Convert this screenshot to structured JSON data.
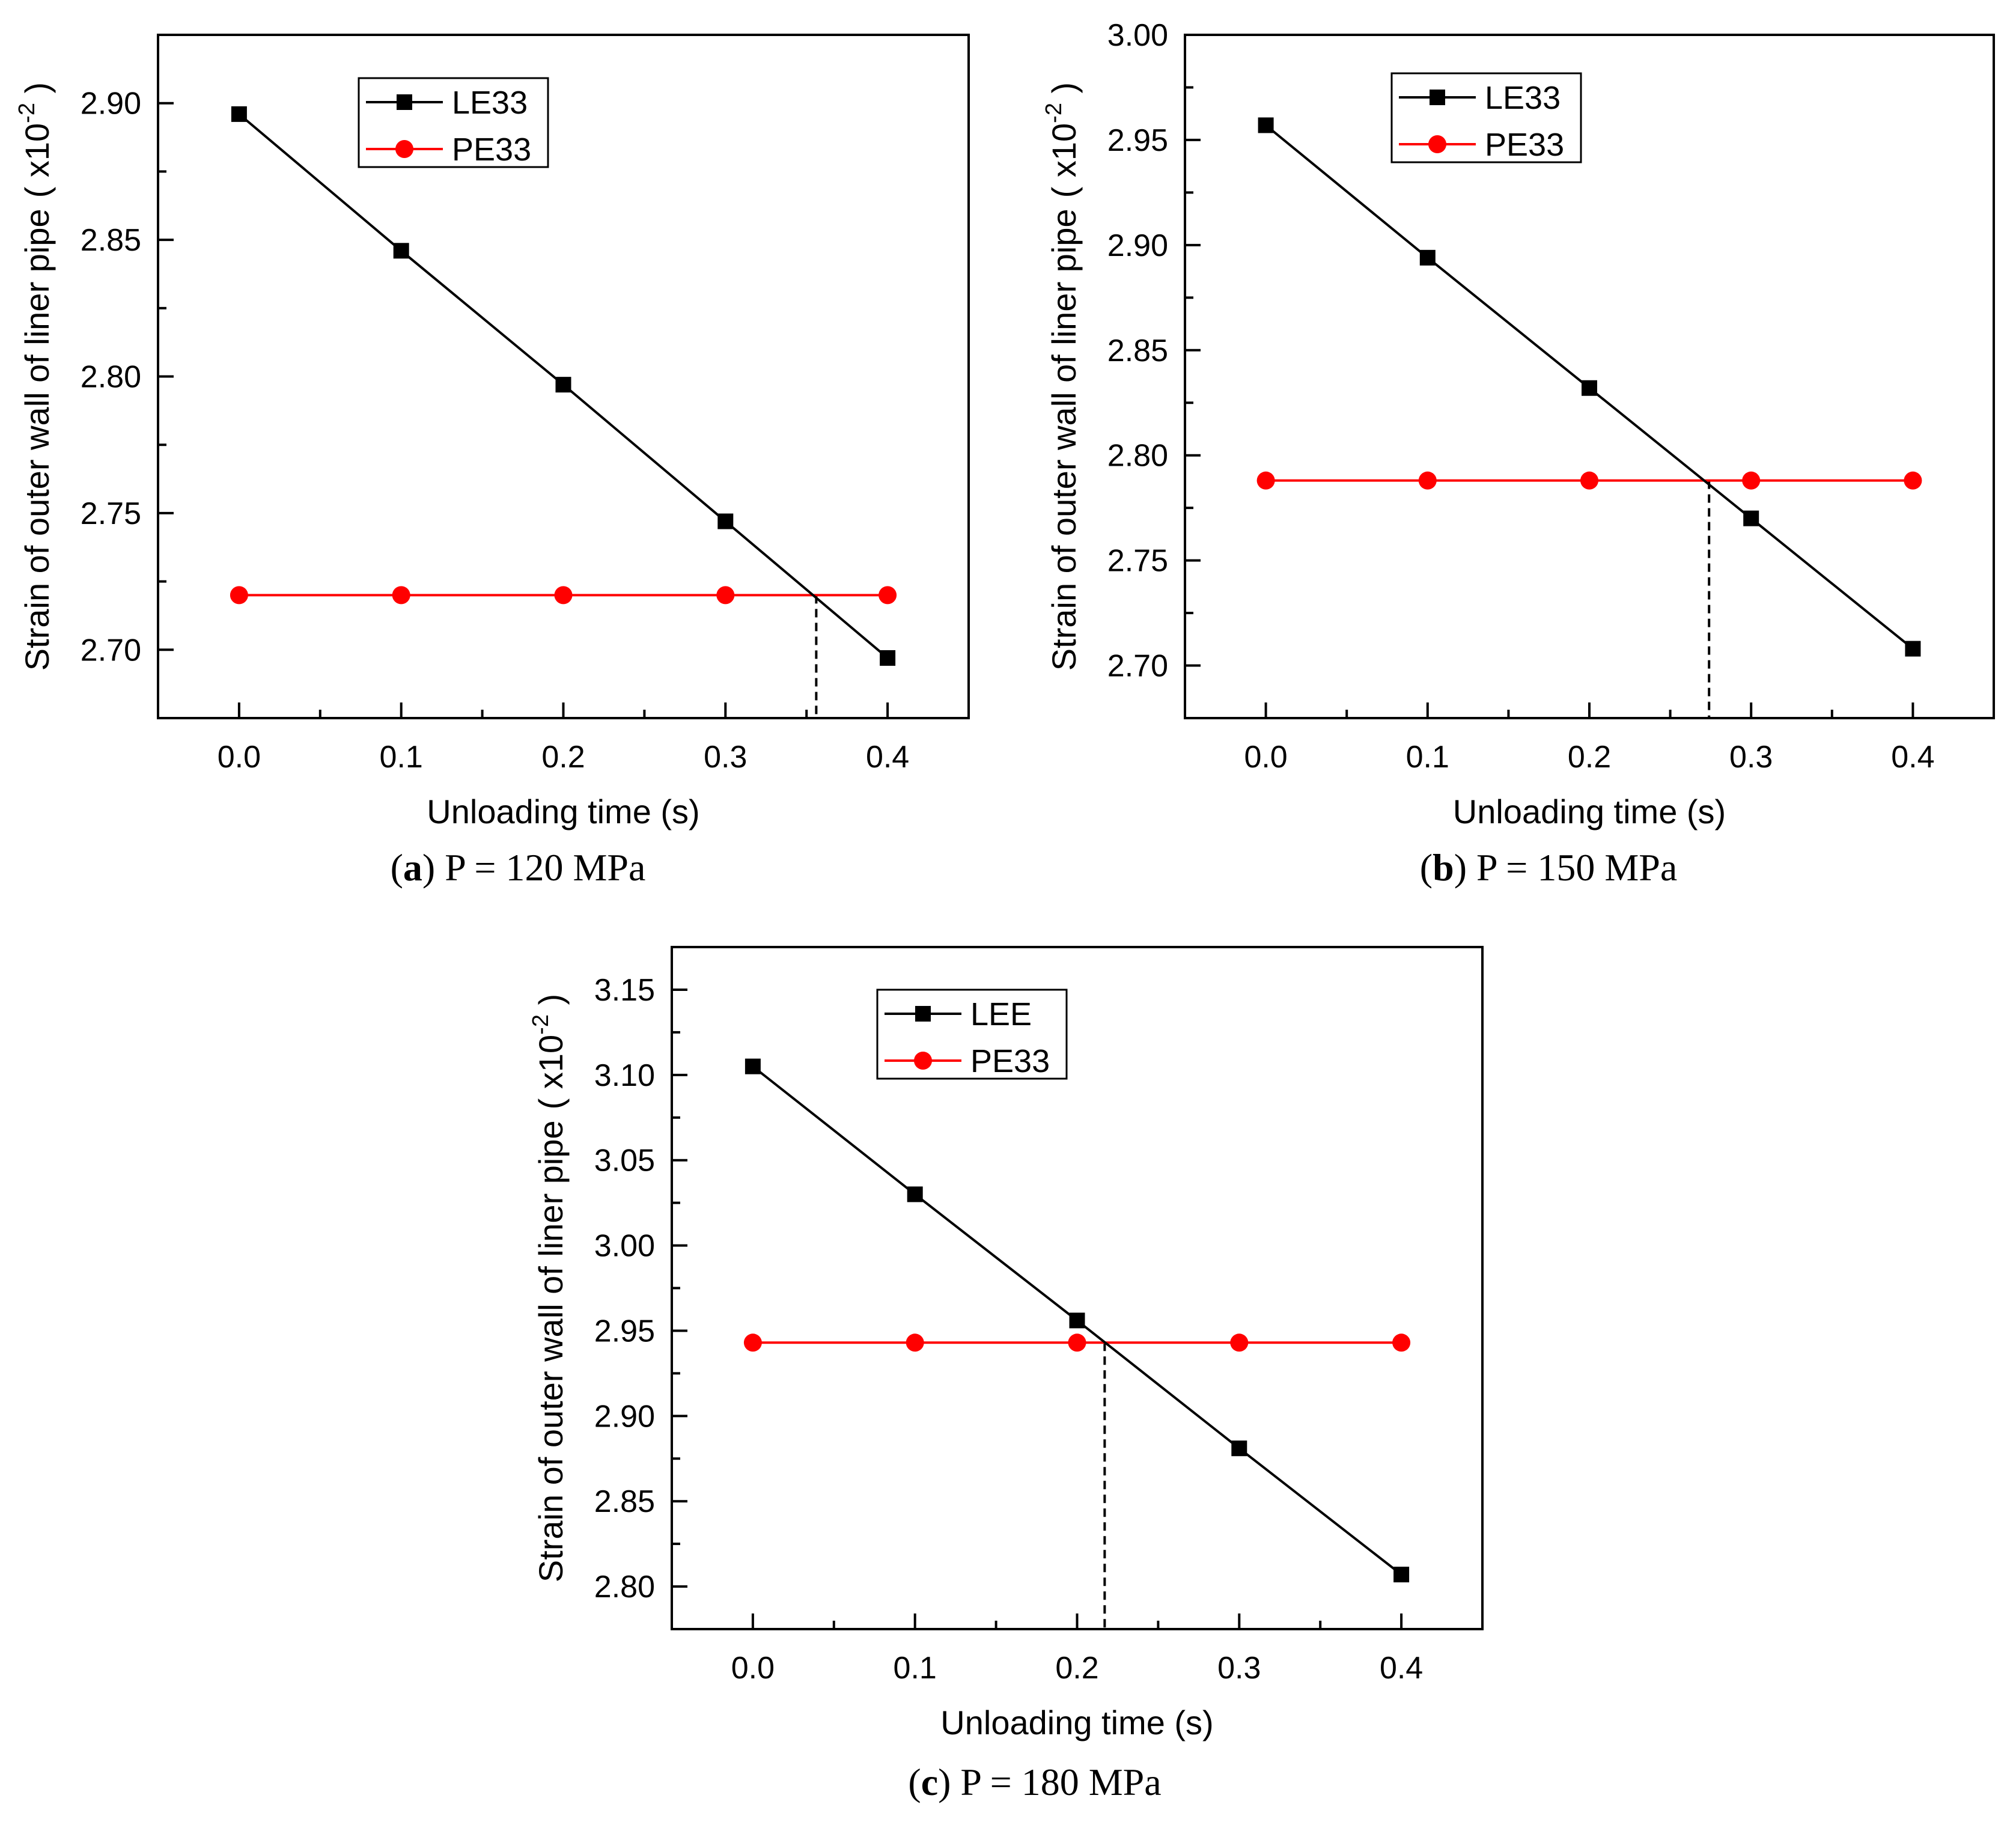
{
  "chart_data": [
    {
      "type": "line",
      "caption_letter": "a",
      "caption_rest": " P = 120 MPa",
      "xlabel": "Unloading time (s)",
      "ylabel": "Strain of outer wall of liner pipe",
      "yunit": "( x10",
      "yunit_exp": "-2",
      "yunit_close": " )",
      "xlim": [
        -0.05,
        0.45
      ],
      "ylim": [
        2.675,
        2.925
      ],
      "xticks": [
        0.0,
        0.1,
        0.2,
        0.3,
        0.4
      ],
      "xticklabels": [
        "0.0",
        "0.1",
        "0.2",
        "0.3",
        "0.4"
      ],
      "yticks": [
        2.7,
        2.75,
        2.8,
        2.85,
        2.9
      ],
      "yticklabels": [
        "2.70",
        "2.75",
        "2.80",
        "2.85",
        "2.90"
      ],
      "x": [
        0.0,
        0.1,
        0.2,
        0.3,
        0.4
      ],
      "series": [
        {
          "name": "LE33",
          "marker": "square",
          "color": "#000000",
          "values": [
            2.896,
            2.846,
            2.797,
            2.747,
            2.697
          ]
        },
        {
          "name": "PE33",
          "marker": "circle",
          "color": "#ff0000",
          "values": [
            2.72,
            2.72,
            2.72,
            2.72,
            2.72
          ]
        }
      ],
      "intersection": {
        "x": 0.356,
        "y": 2.72
      },
      "legend": "top-left"
    },
    {
      "type": "line",
      "caption_letter": "b",
      "caption_rest": " P = 150 MPa",
      "xlabel": "Unloading time (s)",
      "ylabel": "Strain of outer wall of liner pipe",
      "yunit": "( x10",
      "yunit_exp": "-2",
      "yunit_close": " )",
      "xlim": [
        -0.05,
        0.45
      ],
      "ylim": [
        2.675,
        3.0
      ],
      "xticks": [
        0.0,
        0.1,
        0.2,
        0.3,
        0.4
      ],
      "xticklabels": [
        "0.0",
        "0.1",
        "0.2",
        "0.3",
        "0.4"
      ],
      "yticks": [
        2.7,
        2.75,
        2.8,
        2.85,
        2.9,
        2.95,
        3.0
      ],
      "yticklabels": [
        "2.70",
        "2.75",
        "2.80",
        "2.85",
        "2.90",
        "2.95",
        "3.00"
      ],
      "x": [
        0.0,
        0.1,
        0.2,
        0.3,
        0.4
      ],
      "series": [
        {
          "name": "LE33",
          "marker": "square",
          "color": "#000000",
          "values": [
            2.957,
            2.894,
            2.832,
            2.77,
            2.708
          ]
        },
        {
          "name": "PE33",
          "marker": "circle",
          "color": "#ff0000",
          "values": [
            2.788,
            2.788,
            2.788,
            2.788,
            2.788
          ]
        }
      ],
      "intersection": {
        "x": 0.274,
        "y": 2.788
      },
      "legend": "top-left"
    },
    {
      "type": "line",
      "caption_letter": "c",
      "caption_rest": " P = 180 MPa",
      "xlabel": "Unloading time (s)",
      "ylabel": "Strain of outer wall of liner pipe",
      "yunit": "( x10",
      "yunit_exp": "-2",
      "yunit_close": " )",
      "xlim": [
        -0.05,
        0.45
      ],
      "ylim": [
        2.775,
        3.175
      ],
      "xticks": [
        0.0,
        0.1,
        0.2,
        0.3,
        0.4
      ],
      "xticklabels": [
        "0.0",
        "0.1",
        "0.2",
        "0.3",
        "0.4"
      ],
      "yticks": [
        2.8,
        2.85,
        2.9,
        2.95,
        3.0,
        3.05,
        3.1,
        3.15
      ],
      "yticklabels": [
        "2.80",
        "2.85",
        "2.90",
        "2.95",
        "3.00",
        "3.05",
        "3.10",
        "3.15"
      ],
      "x": [
        0.0,
        0.1,
        0.2,
        0.3,
        0.4
      ],
      "series": [
        {
          "name": "LEE",
          "marker": "square",
          "color": "#000000",
          "values": [
            3.105,
            3.03,
            2.956,
            2.881,
            2.807
          ]
        },
        {
          "name": "PE33",
          "marker": "circle",
          "color": "#ff0000",
          "values": [
            2.943,
            2.943,
            2.943,
            2.943,
            2.943
          ]
        }
      ],
      "intersection": {
        "x": 0.217,
        "y": 2.943
      },
      "legend": "top-left"
    }
  ]
}
